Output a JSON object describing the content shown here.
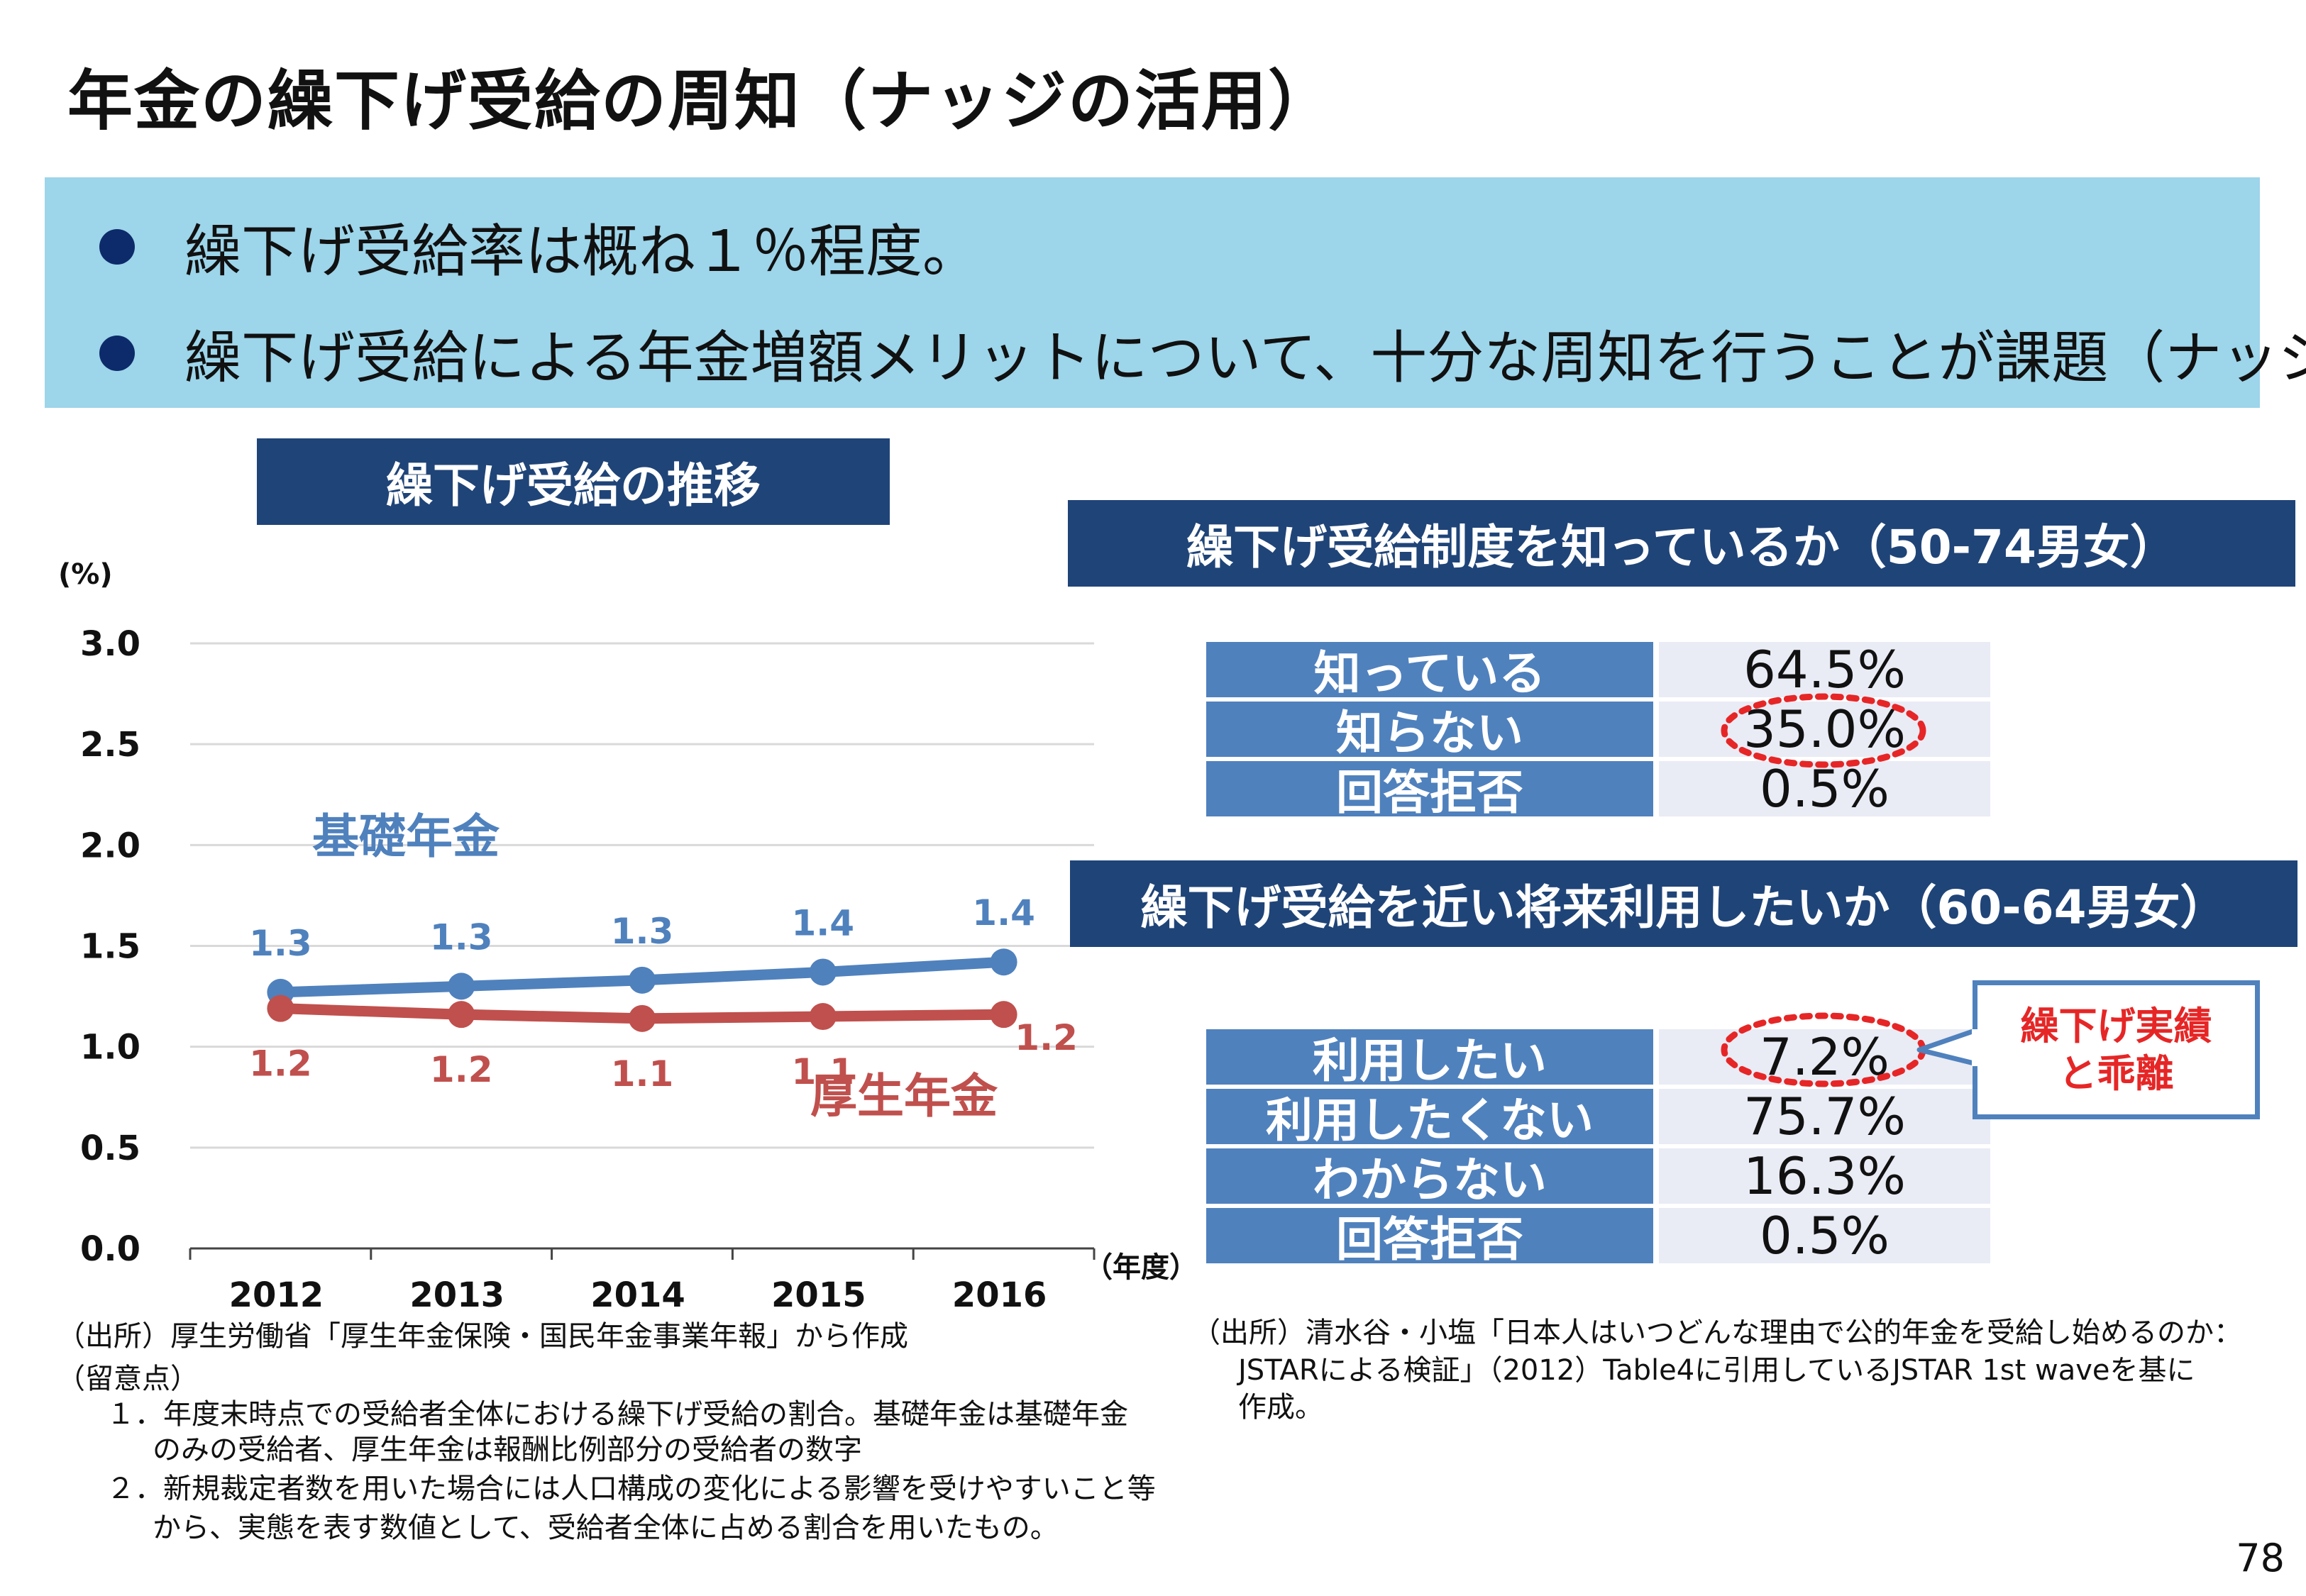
{
  "title": "年金の繰下げ受給の周知（ナッジの活用）",
  "summary": {
    "bullets": [
      "繰下げ受給率は概ね１％程度。",
      "繰下げ受給による年金増額メリットについて、十分な周知を行うことが課題（ナッジ）。"
    ]
  },
  "colors": {
    "kiso": "#4f81bd",
    "kosei": "#c0504d",
    "header_bg": "#1f4478",
    "summary_bg": "#9dd5ea",
    "table_label_bg": "#4f81bd",
    "table_value_bg": "#e9ebf5",
    "highlight": "#e62626"
  },
  "chart_header": "繰下げ受給の推移",
  "chart_data": {
    "type": "line",
    "title": "繰下げ受給の推移",
    "y_unit": "(%)",
    "x_unit": "（年度）",
    "categories": [
      "2012",
      "2013",
      "2014",
      "2015",
      "2016"
    ],
    "yticks": [
      "0.0",
      "0.5",
      "1.0",
      "1.5",
      "2.0",
      "2.5",
      "3.0"
    ],
    "ylim": [
      0,
      3.0
    ],
    "series": [
      {
        "name": "基礎年金",
        "values": [
          1.27,
          1.3,
          1.33,
          1.37,
          1.42
        ],
        "labels": [
          "1.3",
          "1.3",
          "1.3",
          "1.4",
          "1.4"
        ],
        "color": "#4f81bd"
      },
      {
        "name": "厚生年金",
        "values": [
          1.19,
          1.16,
          1.14,
          1.15,
          1.16
        ],
        "labels": [
          "1.2",
          "1.2",
          "1.1",
          "1.1",
          "1.2"
        ],
        "color": "#c0504d"
      }
    ],
    "grid": true,
    "legend": "inline labels"
  },
  "survey1": {
    "header": "繰下げ受給制度を知っているか（50-74男女）",
    "rows": [
      {
        "label": "知っている",
        "value": "64.5%"
      },
      {
        "label": "知らない",
        "value": "35.0%"
      },
      {
        "label": "回答拒否",
        "value": "0.5%"
      }
    ]
  },
  "survey2": {
    "header": "繰下げ受給を近い将来利用したいか（60-64男女）",
    "rows": [
      {
        "label": "利用したい",
        "value": "7.2%"
      },
      {
        "label": "利用したくない",
        "value": "75.7%"
      },
      {
        "label": "わからない",
        "value": "16.3%"
      },
      {
        "label": "回答拒否",
        "value": "0.5%"
      }
    ]
  },
  "callout": {
    "line1": "繰下げ実績",
    "line2": "と乖離"
  },
  "left_notes": [
    "（出所）厚生労働省「厚生年金保険・国民年金事業年報」から作成",
    "（留意点）",
    "１．年度末時点での受給者全体における繰下げ受給の割合。基礎年金は基礎年金",
    "のみの受給者、厚生年金は報酬比例部分の受給者の数字",
    "２．新規裁定者数を用いた場合には人口構成の変化による影響を受けやすいこと等",
    "から、実態を表す数値として、受給者全体に占める割合を用いたもの。"
  ],
  "right_notes": [
    "（出所）清水谷・小塩「日本人はいつどんな理由で公的年金を受給し始めるのか：",
    "JSTARによる検証」（2012）Table4に引用しているJSTAR 1st waveを基に",
    "作成。"
  ],
  "page_number": "78"
}
